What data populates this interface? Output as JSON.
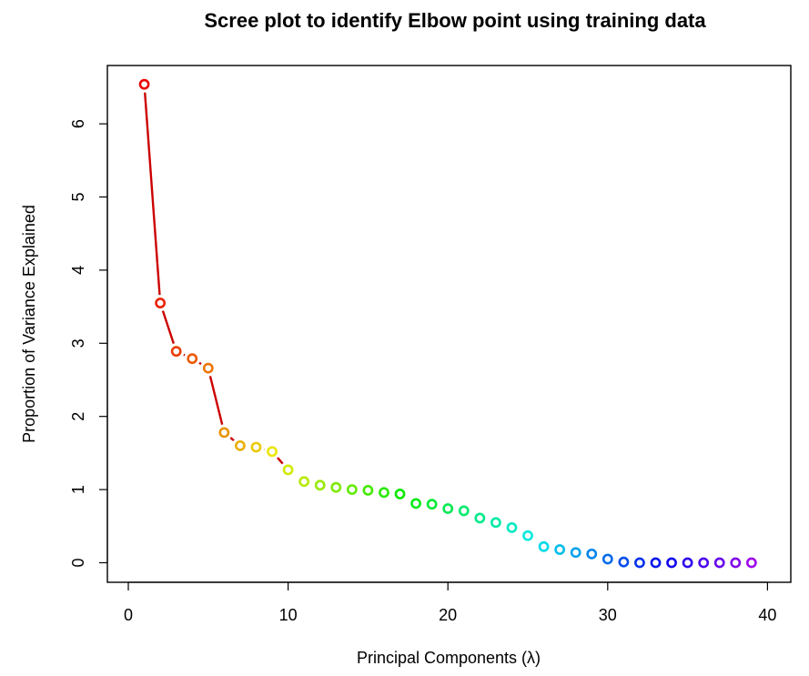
{
  "chart_data": {
    "type": "scatter",
    "title": "Scree plot to identify Elbow point using training data",
    "xlabel": "Principal Components  (λ)",
    "ylabel": "Proportion of Variance Explained",
    "xlim": [
      0,
      40
    ],
    "ylim": [
      0,
      6.5
    ],
    "x_ticks": [
      0,
      10,
      20,
      30,
      40
    ],
    "y_ticks": [
      0,
      1,
      2,
      3,
      4,
      5,
      6
    ],
    "grid": false,
    "legend": "none",
    "connecting_line": {
      "color": "#cc0000",
      "x_range": [
        1,
        10
      ]
    },
    "points": {
      "x": [
        1,
        2,
        3,
        4,
        5,
        6,
        7,
        8,
        9,
        10,
        11,
        12,
        13,
        14,
        15,
        16,
        17,
        18,
        19,
        20,
        21,
        22,
        23,
        24,
        25,
        26,
        27,
        28,
        29,
        30,
        31,
        32,
        33,
        34,
        35,
        36,
        37,
        38,
        39
      ],
      "y": [
        6.54,
        3.55,
        2.89,
        2.79,
        2.66,
        1.78,
        1.6,
        1.58,
        1.52,
        1.27,
        1.11,
        1.06,
        1.03,
        1.0,
        0.99,
        0.96,
        0.94,
        0.81,
        0.8,
        0.74,
        0.71,
        0.61,
        0.55,
        0.48,
        0.37,
        0.22,
        0.18,
        0.14,
        0.12,
        0.05,
        0.01,
        0.0,
        0.0,
        0.0,
        0.0,
        0.0,
        0.0,
        0.0,
        0.0
      ]
    },
    "color_scale": "rainbow (red → orange → yellow → green → cyan → blue → violet)"
  }
}
